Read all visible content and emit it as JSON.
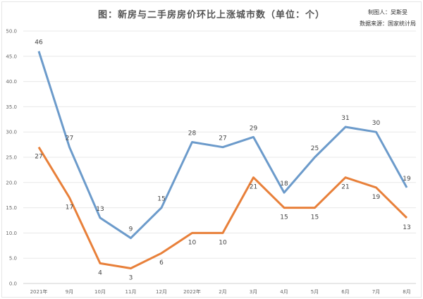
{
  "chart_data": {
    "type": "line",
    "title": "图：新房与二手房房价环比上涨城市数（单位：个）",
    "annotations": [
      "制图人：吴斯旻",
      "数据来源：国家统计局"
    ],
    "categories": [
      "2021年",
      "9月",
      "10月",
      "11月",
      "12月",
      "2022年",
      "2月",
      "3月",
      "4月",
      "5月",
      "6月",
      "7月",
      "8月"
    ],
    "series": [
      {
        "color": "#6c9bcb",
        "values": [
          46,
          27,
          13,
          9,
          15,
          28,
          27,
          29,
          18,
          25,
          31,
          30,
          19
        ]
      },
      {
        "color": "#e8803a",
        "values": [
          27,
          17,
          4,
          3,
          6,
          10,
          10,
          21,
          15,
          15,
          21,
          19,
          13
        ]
      }
    ],
    "ylim": [
      0,
      50
    ],
    "yticks": [
      "0.0",
      "5.0",
      "10.0",
      "15.0",
      "20.0",
      "25.0",
      "30.0",
      "35.0",
      "40.0",
      "45.0",
      "50.0"
    ],
    "grid": true,
    "legend": "none",
    "data_labels": true
  }
}
